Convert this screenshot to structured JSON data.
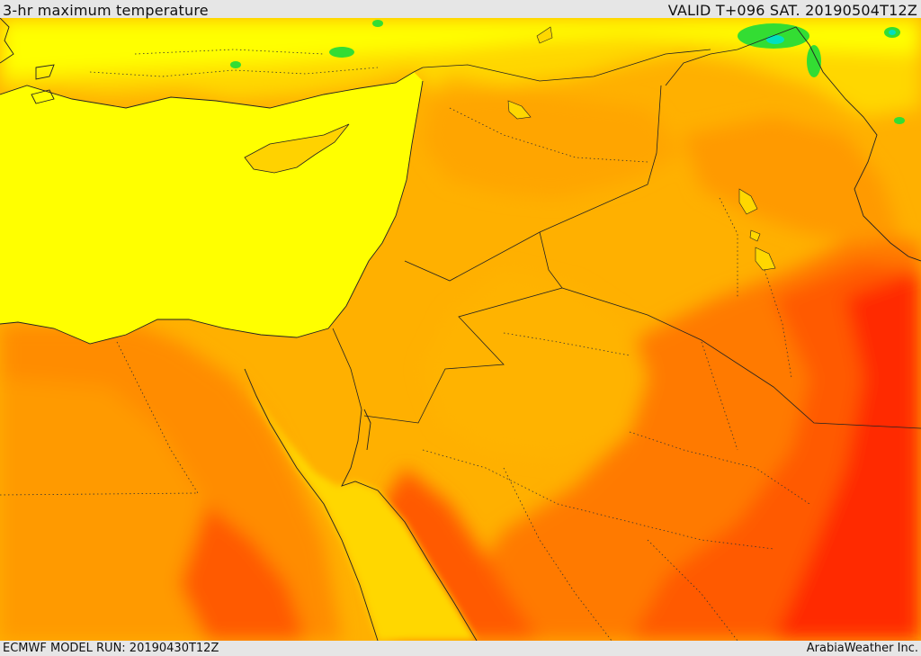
{
  "header": {
    "title": "3-hr maximum temperature",
    "valid": "VALID T+096 SAT. 20190504T12Z"
  },
  "footer": {
    "model_run": "ECMWF MODEL RUN: 20190430T12Z",
    "credit": "ArabiaWeather Inc."
  },
  "map": {
    "field": "3-hr maximum temperature",
    "palette": {
      "sea": "#ffff00",
      "yellow": "#ffff00",
      "light_orange": "#ffd700",
      "orange": "#ffb000",
      "dark_orange": "#ff8c00",
      "red_orange": "#ff5a00",
      "red": "#ff2a00",
      "green": "#33dd33",
      "cyan": "#00e0c0",
      "border": "#222222"
    }
  }
}
